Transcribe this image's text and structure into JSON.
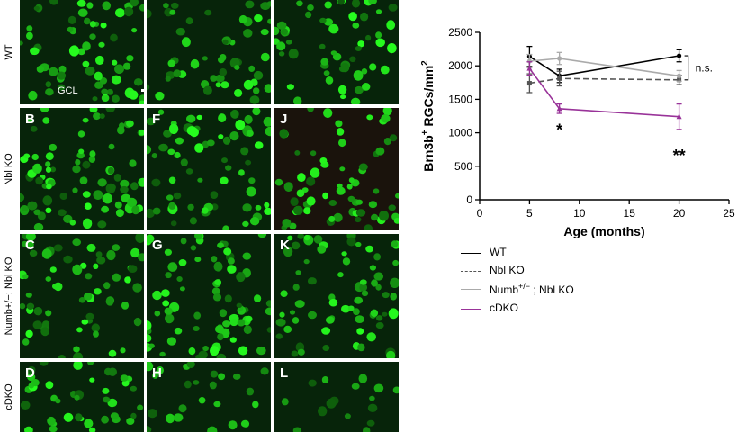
{
  "micrographs": {
    "row_labels": [
      "WT",
      "Nbl KO",
      "Numb+/−; Nbl KO",
      "cDKO"
    ],
    "panels": [
      {
        "label": "",
        "row": 0,
        "col": 0,
        "density": 0.9
      },
      {
        "label": "",
        "row": 0,
        "col": 1,
        "density": 0.75
      },
      {
        "label": "",
        "row": 0,
        "col": 2,
        "density": 0.8
      },
      {
        "label": "B",
        "row": 1,
        "col": 0,
        "density": 1.0
      },
      {
        "label": "F",
        "row": 1,
        "col": 1,
        "density": 0.85
      },
      {
        "label": "J",
        "row": 1,
        "col": 2,
        "density": 0.8
      },
      {
        "label": "C",
        "row": 2,
        "col": 0,
        "density": 0.8
      },
      {
        "label": "G",
        "row": 2,
        "col": 1,
        "density": 0.95
      },
      {
        "label": "K",
        "row": 2,
        "col": 2,
        "density": 0.85
      },
      {
        "label": "D",
        "row": 3,
        "col": 0,
        "density": 0.9
      },
      {
        "label": "H",
        "row": 3,
        "col": 1,
        "density": 0.55
      },
      {
        "label": "L",
        "row": 3,
        "col": 2,
        "density": 0.35
      }
    ],
    "gcl_label": "GCL"
  },
  "chart_data": {
    "type": "line",
    "x": [
      5,
      8,
      20
    ],
    "xlabel": "Age (months)",
    "ylabel_main": "Brn3b",
    "ylabel_sup": "+",
    "ylabel_rest": " RGCs/mm",
    "ylabel_sup2": "2",
    "xlim": [
      0,
      25
    ],
    "ylim": [
      0,
      2500
    ],
    "xticks": [
      "0",
      "5",
      "10",
      "15",
      "20",
      "25"
    ],
    "yticks": [
      "0",
      "500",
      "1000",
      "1500",
      "2000",
      "2500"
    ],
    "series": [
      {
        "name": "WT",
        "values": [
          2140,
          1850,
          2150
        ],
        "errors": [
          150,
          100,
          90
        ],
        "color": "#000000",
        "dash": "",
        "marker": "circle"
      },
      {
        "name": "Nbl KO",
        "values": [
          1740,
          1810,
          1790
        ],
        "errors": [
          140,
          110,
          70
        ],
        "color": "#555555",
        "dash": "6,4",
        "marker": "square"
      },
      {
        "name": "Numb+/− ; Nbl KO",
        "values": [
          2070,
          2110,
          1850
        ],
        "errors": [
          100,
          90,
          80
        ],
        "color": "#aaaaaa",
        "dash": "",
        "marker": "circle"
      },
      {
        "name": "cDKO",
        "values": [
          1960,
          1360,
          1240
        ],
        "errors": [
          100,
          70,
          190
        ],
        "color": "#993399",
        "dash": "",
        "marker": "triangle"
      }
    ],
    "annotations": [
      {
        "text": "n.s.",
        "x": 20,
        "y": 1960
      },
      {
        "text": "*",
        "x": 8,
        "y": 1040
      },
      {
        "text": "**",
        "x": 20,
        "y": 660
      }
    ]
  },
  "legend": [
    {
      "text": "WT",
      "sup": "",
      "rest": "",
      "color": "#000000",
      "dash": "solid"
    },
    {
      "text": "Nbl KO",
      "sup": "",
      "rest": "",
      "color": "#555555",
      "dash": "dashed"
    },
    {
      "text": "Numb",
      "sup": "+/−",
      "rest": " ; Nbl KO",
      "color": "#aaaaaa",
      "dash": "solid"
    },
    {
      "text": "cDKO",
      "sup": "",
      "rest": "",
      "color": "#993399",
      "dash": "solid"
    }
  ]
}
